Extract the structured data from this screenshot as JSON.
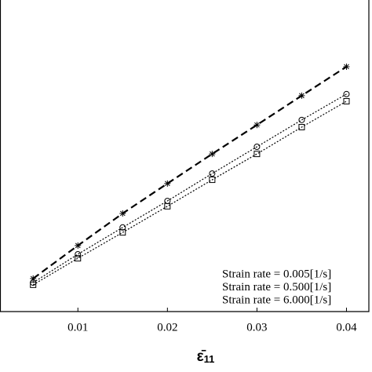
{
  "chart_data": {
    "type": "scatter",
    "xlabel": "ε̄",
    "xlabel_subscript": "11",
    "xlim": [
      0.0013,
      0.0425
    ],
    "ylim": [
      0,
      100
    ],
    "xticks": [
      0.01,
      0.02,
      0.03,
      0.04
    ],
    "legend": "lower right",
    "series": [
      {
        "name": "Strain rate = 0.005[1/s]",
        "color": "#000000",
        "marker": "square",
        "line": "dotted",
        "x": [
          0.005,
          0.01,
          0.015,
          0.02,
          0.025,
          0.03,
          0.035,
          0.04
        ],
        "values": [
          8.6,
          17.1,
          25.4,
          33.8,
          42.3,
          50.6,
          59.2,
          67.5
        ]
      },
      {
        "name": "Strain rate = 0.500[1/s]",
        "color": "#000000",
        "marker": "circle",
        "line": "dotted",
        "x": [
          0.005,
          0.01,
          0.015,
          0.02,
          0.025,
          0.03,
          0.035,
          0.04
        ],
        "values": [
          9.3,
          18.4,
          27.0,
          35.5,
          44.3,
          52.9,
          61.5,
          69.8
        ]
      },
      {
        "name": "Strain rate = 6.000[1/s]",
        "color": "#000000",
        "marker": "star",
        "line": "dashed",
        "x": [
          0.005,
          0.01,
          0.015,
          0.02,
          0.025,
          0.03,
          0.035,
          0.04
        ],
        "values": [
          10.6,
          21.2,
          31.5,
          41.1,
          50.6,
          59.9,
          69.3,
          78.6
        ]
      }
    ]
  }
}
